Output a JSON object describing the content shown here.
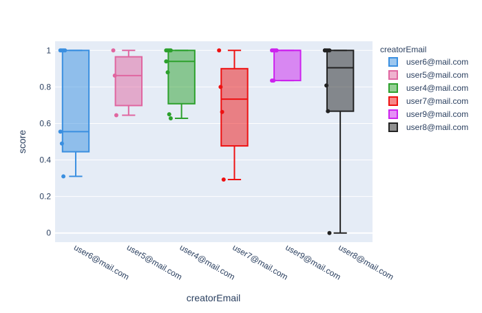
{
  "chart_data": {
    "type": "box",
    "xlabel": "creatorEmail",
    "ylabel": "score",
    "legend_title": "creatorEmail",
    "legend_position": "right",
    "grid": true,
    "ylim": [
      -0.05,
      1.05
    ],
    "yticks": [
      0,
      0.2,
      0.4,
      0.6,
      0.8,
      1
    ],
    "ytick_labels": [
      "0",
      "0.2",
      "0.4",
      "0.6",
      "0.8",
      "1"
    ],
    "categories": [
      "user6@mail.com",
      "user5@mail.com",
      "user4@mail.com",
      "user7@mail.com",
      "user9@mail.com",
      "user8@mail.com"
    ],
    "series": [
      {
        "name": "user6@mail.com",
        "color": "#3a8fe0",
        "min": 0.31,
        "q1": 0.445,
        "median": 0.555,
        "q3": 1.0,
        "max": 1.0,
        "points": [
          1,
          1,
          1,
          1,
          0.555,
          0.49,
          0.31
        ]
      },
      {
        "name": "user5@mail.com",
        "color": "#e066a0",
        "min": 0.645,
        "q1": 0.698,
        "median": 0.862,
        "q3": 0.965,
        "max": 1.0,
        "points": [
          1,
          0.862,
          0.645
        ]
      },
      {
        "name": "user4@mail.com",
        "color": "#2ca02c",
        "min": 0.628,
        "q1": 0.708,
        "median": 0.94,
        "q3": 1.0,
        "max": 1.0,
        "points": [
          1,
          1,
          1,
          1,
          0.94,
          0.88,
          0.65,
          0.628
        ]
      },
      {
        "name": "user7@mail.com",
        "color": "#ee1111",
        "min": 0.293,
        "q1": 0.477,
        "median": 0.733,
        "q3": 0.9,
        "max": 1.0,
        "points": [
          1,
          0.8,
          0.663,
          0.293
        ]
      },
      {
        "name": "user9@mail.com",
        "color": "#cc22ee",
        "min": 0.835,
        "q1": 0.835,
        "median": 1.0,
        "q3": 1.0,
        "max": 1.0,
        "points": [
          1,
          1,
          1,
          1,
          0.835,
          0.835
        ]
      },
      {
        "name": "user8@mail.com",
        "color": "#222222",
        "min": 0.0,
        "q1": 0.667,
        "median": 0.905,
        "q3": 1.0,
        "max": 1.0,
        "points": [
          1,
          1,
          1,
          1,
          1,
          0.808,
          0.667,
          0
        ]
      }
    ]
  }
}
